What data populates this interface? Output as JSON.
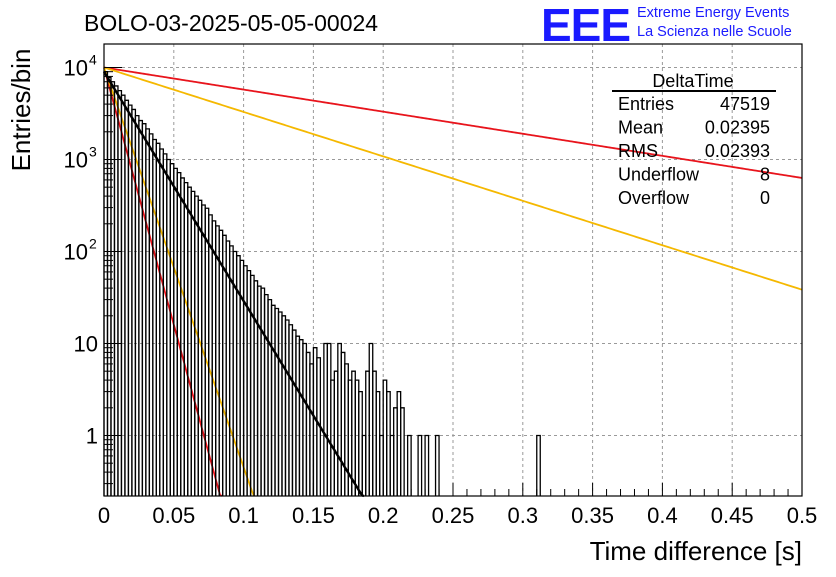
{
  "header": {
    "run_title": "BOLO-03-2025-05-05-00024",
    "logo_mark": "EEE",
    "logo_line1": "Extreme Energy Events",
    "logo_line2": "La Scienza nelle Scuole",
    "logo_color": "#1a1aff"
  },
  "stats_box": {
    "title": "DeltaTime",
    "rows": [
      {
        "label": "Entries",
        "value": "47519"
      },
      {
        "label": "Mean",
        "value": "0.02395"
      },
      {
        "label": "RMS",
        "value": "0.02393"
      },
      {
        "label": "Underflow",
        "value": "8"
      },
      {
        "label": "Overflow",
        "value": "0"
      }
    ]
  },
  "chart_data": {
    "type": "line",
    "title": "BOLO-03-2025-05-05-00024",
    "xlabel": "Time difference [s]",
    "ylabel": "Entries/bin",
    "xlim": [
      0,
      0.5
    ],
    "ylim": [
      0.22,
      18000
    ],
    "y_scale": "log",
    "grid": true,
    "x_ticks": [
      {
        "v": 0,
        "label": "0"
      },
      {
        "v": 0.05,
        "label": "0.05"
      },
      {
        "v": 0.1,
        "label": "0.1"
      },
      {
        "v": 0.15,
        "label": "0.15"
      },
      {
        "v": 0.2,
        "label": "0.2"
      },
      {
        "v": 0.25,
        "label": "0.25"
      },
      {
        "v": 0.3,
        "label": "0.3"
      },
      {
        "v": 0.35,
        "label": "0.35"
      },
      {
        "v": 0.4,
        "label": "0.4"
      },
      {
        "v": 0.45,
        "label": "0.45"
      },
      {
        "v": 0.5,
        "label": "0.5"
      }
    ],
    "y_ticks": [
      {
        "v": 1,
        "label": "1"
      },
      {
        "v": 10,
        "label": "10"
      },
      {
        "v": 100,
        "label": "10",
        "sup": "2"
      },
      {
        "v": 1000,
        "label": "10",
        "sup": "3"
      },
      {
        "v": 10000,
        "label": "10",
        "sup": "4"
      }
    ],
    "histogram": {
      "name": "DeltaTime",
      "bin_width": 0.0025,
      "color": "#000000",
      "bins": [
        {
          "x": 0.0,
          "y": 9000
        },
        {
          "x": 0.0025,
          "y": 7800
        },
        {
          "x": 0.005,
          "y": 7000
        },
        {
          "x": 0.0075,
          "y": 6300
        },
        {
          "x": 0.01,
          "y": 5600
        },
        {
          "x": 0.0125,
          "y": 5000
        },
        {
          "x": 0.015,
          "y": 4400
        },
        {
          "x": 0.0175,
          "y": 3900
        },
        {
          "x": 0.02,
          "y": 3500
        },
        {
          "x": 0.0225,
          "y": 3000
        },
        {
          "x": 0.025,
          "y": 2650
        },
        {
          "x": 0.0275,
          "y": 2450
        },
        {
          "x": 0.03,
          "y": 2150
        },
        {
          "x": 0.0325,
          "y": 1900
        },
        {
          "x": 0.035,
          "y": 1650
        },
        {
          "x": 0.0375,
          "y": 1500
        },
        {
          "x": 0.04,
          "y": 1300
        },
        {
          "x": 0.0425,
          "y": 1150
        },
        {
          "x": 0.045,
          "y": 1000
        },
        {
          "x": 0.0475,
          "y": 900
        },
        {
          "x": 0.05,
          "y": 800
        },
        {
          "x": 0.0525,
          "y": 720
        },
        {
          "x": 0.055,
          "y": 630
        },
        {
          "x": 0.0575,
          "y": 560
        },
        {
          "x": 0.06,
          "y": 500
        },
        {
          "x": 0.0625,
          "y": 450
        },
        {
          "x": 0.065,
          "y": 400
        },
        {
          "x": 0.0675,
          "y": 360
        },
        {
          "x": 0.07,
          "y": 320
        },
        {
          "x": 0.0725,
          "y": 295
        },
        {
          "x": 0.075,
          "y": 250
        },
        {
          "x": 0.0775,
          "y": 215
        },
        {
          "x": 0.08,
          "y": 190
        },
        {
          "x": 0.0825,
          "y": 170
        },
        {
          "x": 0.085,
          "y": 150
        },
        {
          "x": 0.0875,
          "y": 130
        },
        {
          "x": 0.09,
          "y": 115
        },
        {
          "x": 0.0925,
          "y": 100
        },
        {
          "x": 0.095,
          "y": 90
        },
        {
          "x": 0.0975,
          "y": 80
        },
        {
          "x": 0.1,
          "y": 70
        },
        {
          "x": 0.1025,
          "y": 62
        },
        {
          "x": 0.105,
          "y": 55
        },
        {
          "x": 0.1075,
          "y": 48
        },
        {
          "x": 0.11,
          "y": 42
        },
        {
          "x": 0.1125,
          "y": 40
        },
        {
          "x": 0.115,
          "y": 34
        },
        {
          "x": 0.1175,
          "y": 30
        },
        {
          "x": 0.12,
          "y": 26
        },
        {
          "x": 0.1225,
          "y": 24
        },
        {
          "x": 0.125,
          "y": 22
        },
        {
          "x": 0.1275,
          "y": 20
        },
        {
          "x": 0.13,
          "y": 18
        },
        {
          "x": 0.1325,
          "y": 16
        },
        {
          "x": 0.135,
          "y": 14
        },
        {
          "x": 0.1375,
          "y": 12
        },
        {
          "x": 0.14,
          "y": 11
        },
        {
          "x": 0.1425,
          "y": 10
        },
        {
          "x": 0.145,
          "y": 8
        },
        {
          "x": 0.1475,
          "y": 6
        },
        {
          "x": 0.15,
          "y": 9
        },
        {
          "x": 0.1525,
          "y": 7
        },
        {
          "x": 0.1575,
          "y": 10
        },
        {
          "x": 0.16,
          "y": 10
        },
        {
          "x": 0.1625,
          "y": 4
        },
        {
          "x": 0.165,
          "y": 5
        },
        {
          "x": 0.1675,
          "y": 10
        },
        {
          "x": 0.17,
          "y": 8
        },
        {
          "x": 0.1725,
          "y": 6
        },
        {
          "x": 0.175,
          "y": 4
        },
        {
          "x": 0.1775,
          "y": 5
        },
        {
          "x": 0.18,
          "y": 4
        },
        {
          "x": 0.1825,
          "y": 3
        },
        {
          "x": 0.185,
          "y": 1
        },
        {
          "x": 0.1875,
          "y": 5
        },
        {
          "x": 0.19,
          "y": 10
        },
        {
          "x": 0.1925,
          "y": 5
        },
        {
          "x": 0.195,
          "y": 3
        },
        {
          "x": 0.1975,
          "y": 1
        },
        {
          "x": 0.2,
          "y": 4
        },
        {
          "x": 0.2025,
          "y": 3
        },
        {
          "x": 0.205,
          "y": 1
        },
        {
          "x": 0.2075,
          "y": 2
        },
        {
          "x": 0.21,
          "y": 3
        },
        {
          "x": 0.2125,
          "y": 2
        },
        {
          "x": 0.2175,
          "y": 1
        },
        {
          "x": 0.225,
          "y": 1
        },
        {
          "x": 0.23,
          "y": 1
        },
        {
          "x": 0.2375,
          "y": 1
        },
        {
          "x": 0.31,
          "y": 1
        }
      ]
    },
    "curves": [
      {
        "name": "fit",
        "color": "#000000",
        "y0": 9000,
        "slope": -0.01785
      },
      {
        "name": "red-steep",
        "color": "#e8141c",
        "y0": 10000,
        "slope": -0.04005
      },
      {
        "name": "yellow-steep",
        "color": "#f5b800",
        "y0": 10000,
        "slope": -0.03112
      },
      {
        "name": "red-shallow",
        "color": "#e8141c",
        "y0": 10000,
        "slope": -0.00172
      },
      {
        "name": "yellow-shallow",
        "color": "#f5b800",
        "y0": 10000,
        "slope": -0.00346
      }
    ]
  }
}
